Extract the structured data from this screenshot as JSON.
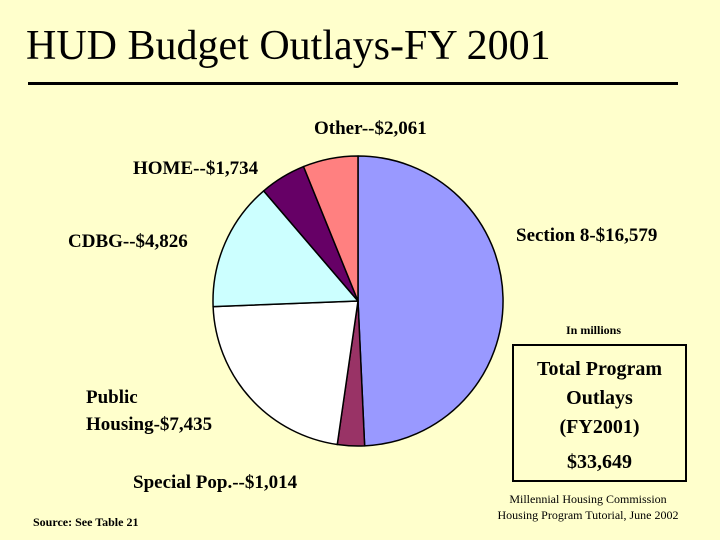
{
  "page": {
    "title": "HUD Budget Outlays-FY 2001",
    "unit_note": "In millions",
    "total": {
      "heading_lines": [
        "Total Program",
        "Outlays",
        "(FY2001)"
      ],
      "value": "$33,649"
    },
    "source": "Source: See Table 21",
    "credit_lines": [
      "Millennial Housing Commission",
      "Housing Program Tutorial, June 2002"
    ]
  },
  "chart_data": {
    "type": "pie",
    "title": "HUD Budget Outlays-FY 2001",
    "unit": "In millions",
    "total": 33649,
    "slices": [
      {
        "label": "Section 8-$16,579",
        "value": 16579,
        "color": "#9999FF"
      },
      {
        "label": "Special Pop.--$1,014",
        "value": 1014,
        "color": "#993366"
      },
      {
        "label": "Public Housing-$7,435",
        "value": 7435,
        "color": "#FFFFFF"
      },
      {
        "label": "CDBG--$4,826",
        "value": 4826,
        "color": "#CCFFFF"
      },
      {
        "label": "HOME--$1,734",
        "value": 1734,
        "color": "#660066"
      },
      {
        "label": "Other--$2,061",
        "value": 2061,
        "color": "#FF8080"
      }
    ]
  }
}
